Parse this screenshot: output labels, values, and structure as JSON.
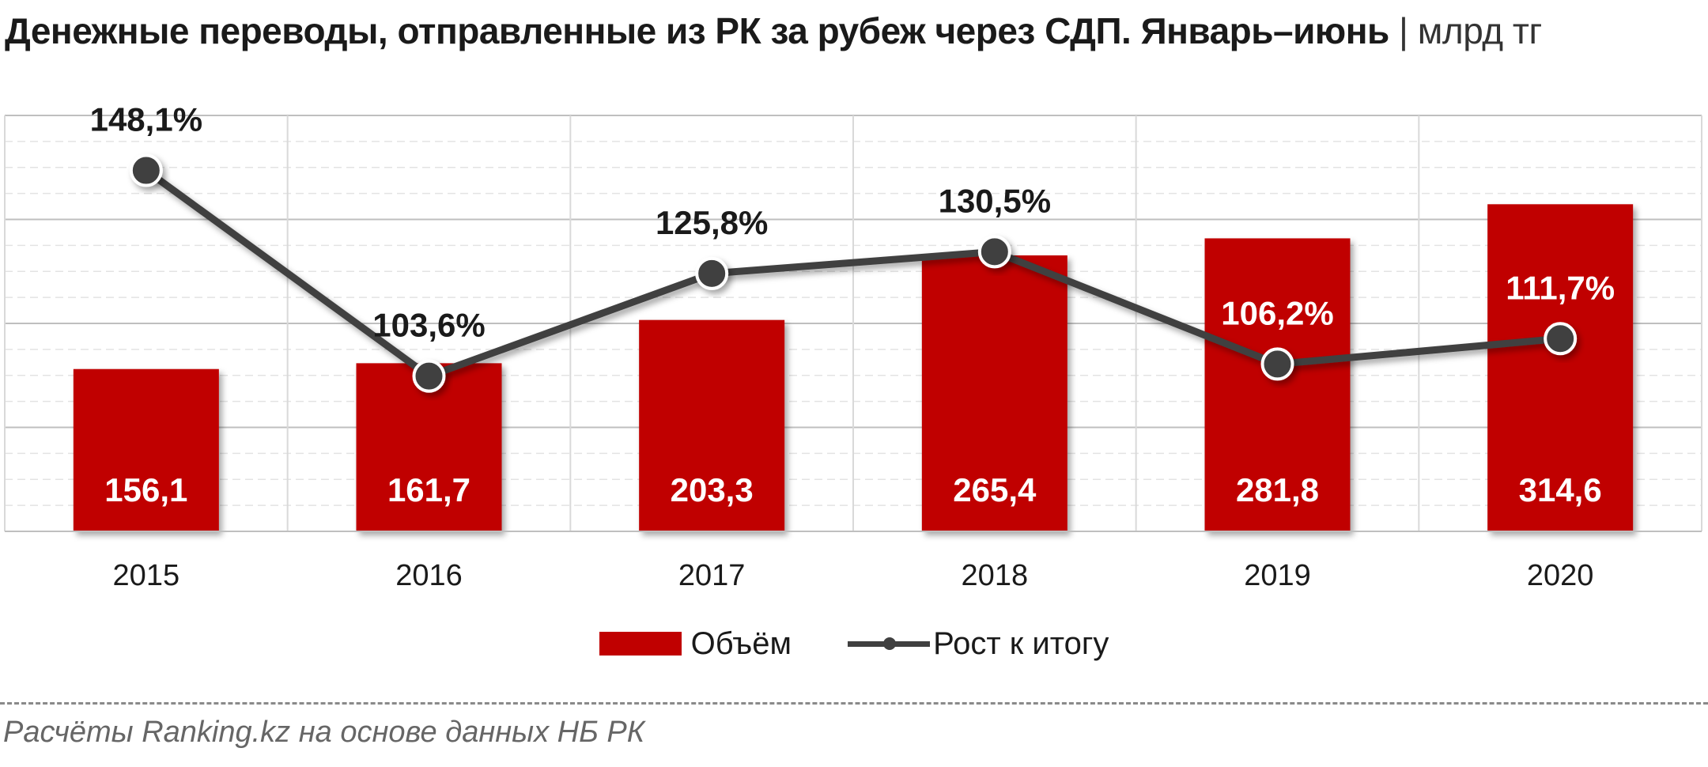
{
  "title": "Денежные переводы, отправленные из РК за рубеж через СДП. Январь–июнь",
  "unit": "| млрд тг",
  "source": "Расчёты Ranking.kz на основе данных НБ РК",
  "colors": {
    "bar": "#c00000",
    "line": "#404040",
    "grid": "#d9d9d9"
  },
  "chart_data": {
    "type": "bar",
    "categories": [
      "2015",
      "2016",
      "2017",
      "2018",
      "2019",
      "2020"
    ],
    "series": [
      {
        "name": "Объём",
        "type": "bar",
        "axis": "left",
        "values": [
          156.1,
          161.7,
          203.3,
          265.4,
          281.8,
          314.6
        ],
        "labels": [
          "156,1",
          "161,7",
          "203,3",
          "265,4",
          "281,8",
          "314,6"
        ]
      },
      {
        "name": "Рост к итогу",
        "type": "line",
        "axis": "right",
        "values": [
          148.1,
          103.6,
          125.8,
          130.5,
          106.2,
          111.7
        ],
        "labels": [
          "148,1%",
          "103,6%",
          "125,8%",
          "130,5%",
          "106,2%",
          "111,7%"
        ]
      }
    ],
    "ylim": [
      0,
      400
    ],
    "y2lim": [
      70,
      160
    ],
    "grid": true,
    "legend_position": "bottom"
  }
}
